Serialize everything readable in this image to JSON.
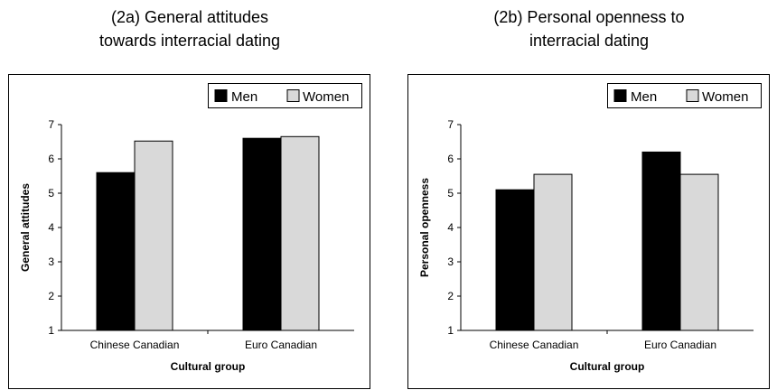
{
  "chart_data": [
    {
      "type": "bar",
      "title_lines": [
        "(2a) General attitudes",
        "towards interracial dating"
      ],
      "xlabel": "Cultural group",
      "ylabel": "General attitudes",
      "categories": [
        "Chinese Canadian",
        "Euro Canadian"
      ],
      "series": [
        {
          "name": "Men",
          "values": [
            5.6,
            6.6
          ]
        },
        {
          "name": "Women",
          "values": [
            6.52,
            6.65
          ]
        }
      ],
      "yticks": [
        1,
        2,
        3,
        4,
        5,
        6,
        7
      ],
      "ylim": [
        1,
        7
      ],
      "grid": false,
      "legend_position": "top-right"
    },
    {
      "type": "bar",
      "title_lines": [
        "(2b) Personal openness to",
        "interracial dating"
      ],
      "xlabel": "Cultural group",
      "ylabel": "Personal openness",
      "categories": [
        "Chinese Canadian",
        "Euro Canadian"
      ],
      "series": [
        {
          "name": "Men",
          "values": [
            5.1,
            6.2
          ]
        },
        {
          "name": "Women",
          "values": [
            5.55,
            5.55
          ]
        }
      ],
      "yticks": [
        1,
        2,
        3,
        4,
        5,
        6,
        7
      ],
      "ylim": [
        1,
        7
      ],
      "grid": false,
      "legend_position": "top-right"
    }
  ],
  "colors": {
    "men": "#000000",
    "women": "#d9d9d9"
  }
}
